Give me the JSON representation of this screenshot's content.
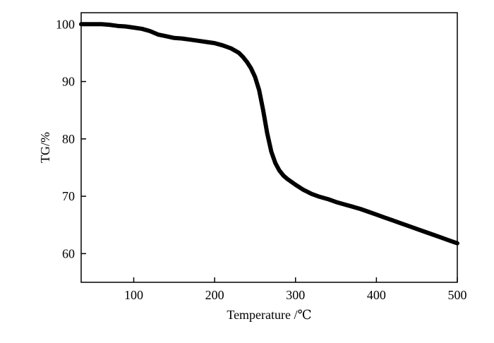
{
  "chart_data": {
    "type": "line",
    "xlabel": "Temperature /℃",
    "ylabel": "TG/%",
    "xlim": [
      35,
      500
    ],
    "ylim": [
      55,
      102
    ],
    "xticks": [
      100,
      200,
      300,
      400,
      500
    ],
    "yticks": [
      60,
      70,
      80,
      90,
      100
    ],
    "grid": false,
    "line_color": "#000000",
    "series": [
      {
        "x": [
          35,
          50,
          60,
          70,
          80,
          90,
          100,
          110,
          120,
          130,
          140,
          150,
          160,
          170,
          180,
          190,
          200,
          210,
          220,
          230,
          235,
          240,
          245,
          250,
          255,
          260,
          265,
          270,
          275,
          280,
          285,
          290,
          300,
          310,
          320,
          330,
          340,
          350,
          360,
          370,
          380,
          390,
          400,
          410,
          420,
          430,
          440,
          450,
          460,
          470,
          480,
          490,
          500
        ],
        "y": [
          100,
          100,
          100,
          99.9,
          99.7,
          99.6,
          99.4,
          99.2,
          98.8,
          98.2,
          97.9,
          97.6,
          97.5,
          97.3,
          97.1,
          96.9,
          96.7,
          96.3,
          95.8,
          95,
          94.3,
          93.4,
          92.3,
          90.8,
          88.5,
          85,
          81,
          77.8,
          75.8,
          74.5,
          73.6,
          73,
          72,
          71.1,
          70.4,
          69.9,
          69.5,
          69,
          68.6,
          68.2,
          67.8,
          67.3,
          66.8,
          66.3,
          65.8,
          65.3,
          64.8,
          64.3,
          63.8,
          63.3,
          62.8,
          62.3,
          61.8
        ]
      }
    ]
  }
}
